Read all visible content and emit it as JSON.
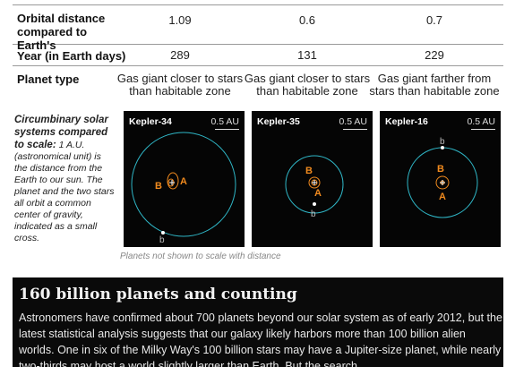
{
  "table": {
    "rows": [
      {
        "label": "Orbital distance compared to Earth's",
        "values": [
          "1.09",
          "0.6",
          "0.7"
        ]
      },
      {
        "label": "Year (in Earth days)",
        "values": [
          "289",
          "131",
          "229"
        ]
      },
      {
        "label": "Planet type",
        "values": [
          "Gas giant closer to stars than habitable zone",
          "Gas giant closer to stars than habitable zone",
          "Gas giant farther from stars than habitable zone"
        ]
      }
    ]
  },
  "side_note": {
    "lead": "Circumbinary solar systems compared to scale:",
    "body": " 1 A.U. (astronomical unit) is the distance from the Earth to our sun. The planet and the two stars all orbit a common center of gravity, indicated as a small cross."
  },
  "panels": [
    {
      "name": "Kepler-34",
      "scale": "0.5 AU",
      "star_a": "A",
      "star_b": "B",
      "planet": "b"
    },
    {
      "name": "Kepler-35",
      "scale": "0.5 AU",
      "star_a": "A",
      "star_b": "B",
      "planet": "b"
    },
    {
      "name": "Kepler-16",
      "scale": "0.5 AU",
      "star_a": "A",
      "star_b": "B",
      "planet": "b"
    }
  ],
  "caption": "Planets not shown to scale with distance",
  "article": {
    "title": "160 billion planets and counting",
    "body": "Astronomers have confirmed about 700 planets beyond our solar system as of early 2012, but the latest statistical analysis suggests that our galaxy likely harbors more than 100 billion alien worlds. One in six of the Milky Way's 100 billion stars may have a Jupiter-size planet, while nearly two-thirds may host a world slightly larger than Earth. But the search"
  },
  "colors": {
    "orbit": "#2fb6c6",
    "star": "#f08a1e",
    "planet_label": "#bdbdbd"
  }
}
